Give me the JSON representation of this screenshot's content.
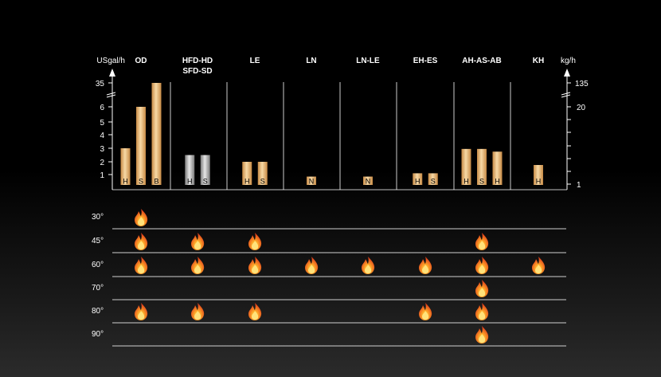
{
  "chart_data": {
    "type": "bar",
    "left_axis": {
      "unit": "USgal/h",
      "ticks": [
        "1",
        "2",
        "3",
        "4",
        "5",
        "6",
        "35"
      ]
    },
    "right_axis": {
      "unit": "kg/h",
      "ticks": [
        "1",
        "20",
        "135"
      ]
    },
    "groups": [
      {
        "name": "OD",
        "name2": "",
        "bars": [
          {
            "label": "H",
            "value": 3.0,
            "style": "gold"
          },
          {
            "label": "S",
            "value": 6.0,
            "style": "gold"
          },
          {
            "label": "B",
            "value": 35,
            "style": "gold"
          }
        ]
      },
      {
        "name": "HFD-HD",
        "name2": "SFD-SD",
        "bars": [
          {
            "label": "H",
            "value": 2.5,
            "style": "silver"
          },
          {
            "label": "S",
            "value": 2.5,
            "style": "silver"
          }
        ]
      },
      {
        "name": "LE",
        "name2": "",
        "bars": [
          {
            "label": "H",
            "value": 2.0,
            "style": "gold"
          },
          {
            "label": "S",
            "value": 2.0,
            "style": "gold"
          }
        ]
      },
      {
        "name": "LN",
        "name2": "",
        "bars": [
          {
            "label": "N",
            "value": 0.85,
            "style": "gold"
          }
        ]
      },
      {
        "name": "LN-LE",
        "name2": "",
        "bars": [
          {
            "label": "N",
            "value": 0.85,
            "style": "gold"
          }
        ]
      },
      {
        "name": "EH-ES",
        "name2": "",
        "bars": [
          {
            "label": "H",
            "value": 1.1,
            "style": "gold"
          },
          {
            "label": "S",
            "value": 1.1,
            "style": "gold"
          }
        ]
      },
      {
        "name": "AH-AS-AB",
        "name2": "",
        "bars": [
          {
            "label": "H",
            "value": 2.95,
            "style": "gold"
          },
          {
            "label": "S",
            "value": 2.95,
            "style": "gold"
          },
          {
            "label": "H",
            "value": 2.75,
            "style": "gold"
          }
        ]
      },
      {
        "name": "KH",
        "name2": "",
        "bars": [
          {
            "label": "H",
            "value": 1.75,
            "style": "gold"
          }
        ]
      }
    ],
    "angles": [
      "30°",
      "45°",
      "60°",
      "70°",
      "80°",
      "90°"
    ],
    "angle_matrix": [
      [
        1,
        0,
        0,
        0,
        0,
        0,
        0,
        0
      ],
      [
        1,
        1,
        1,
        0,
        0,
        0,
        1,
        0
      ],
      [
        1,
        1,
        1,
        1,
        1,
        1,
        1,
        1
      ],
      [
        0,
        0,
        0,
        0,
        0,
        0,
        1,
        0
      ],
      [
        1,
        1,
        1,
        0,
        0,
        1,
        1,
        0
      ],
      [
        0,
        0,
        0,
        0,
        0,
        0,
        1,
        0
      ]
    ]
  },
  "colors": {
    "gold_light": "#f7d9a6",
    "gold_dark": "#c78a45",
    "silver_light": "#e6e6e6",
    "silver_dark": "#7a7a7a",
    "axis": "#ffffff",
    "flame_outer": "#e8501a",
    "flame_inner": "#ffd23a"
  },
  "icon": "flame-icon"
}
